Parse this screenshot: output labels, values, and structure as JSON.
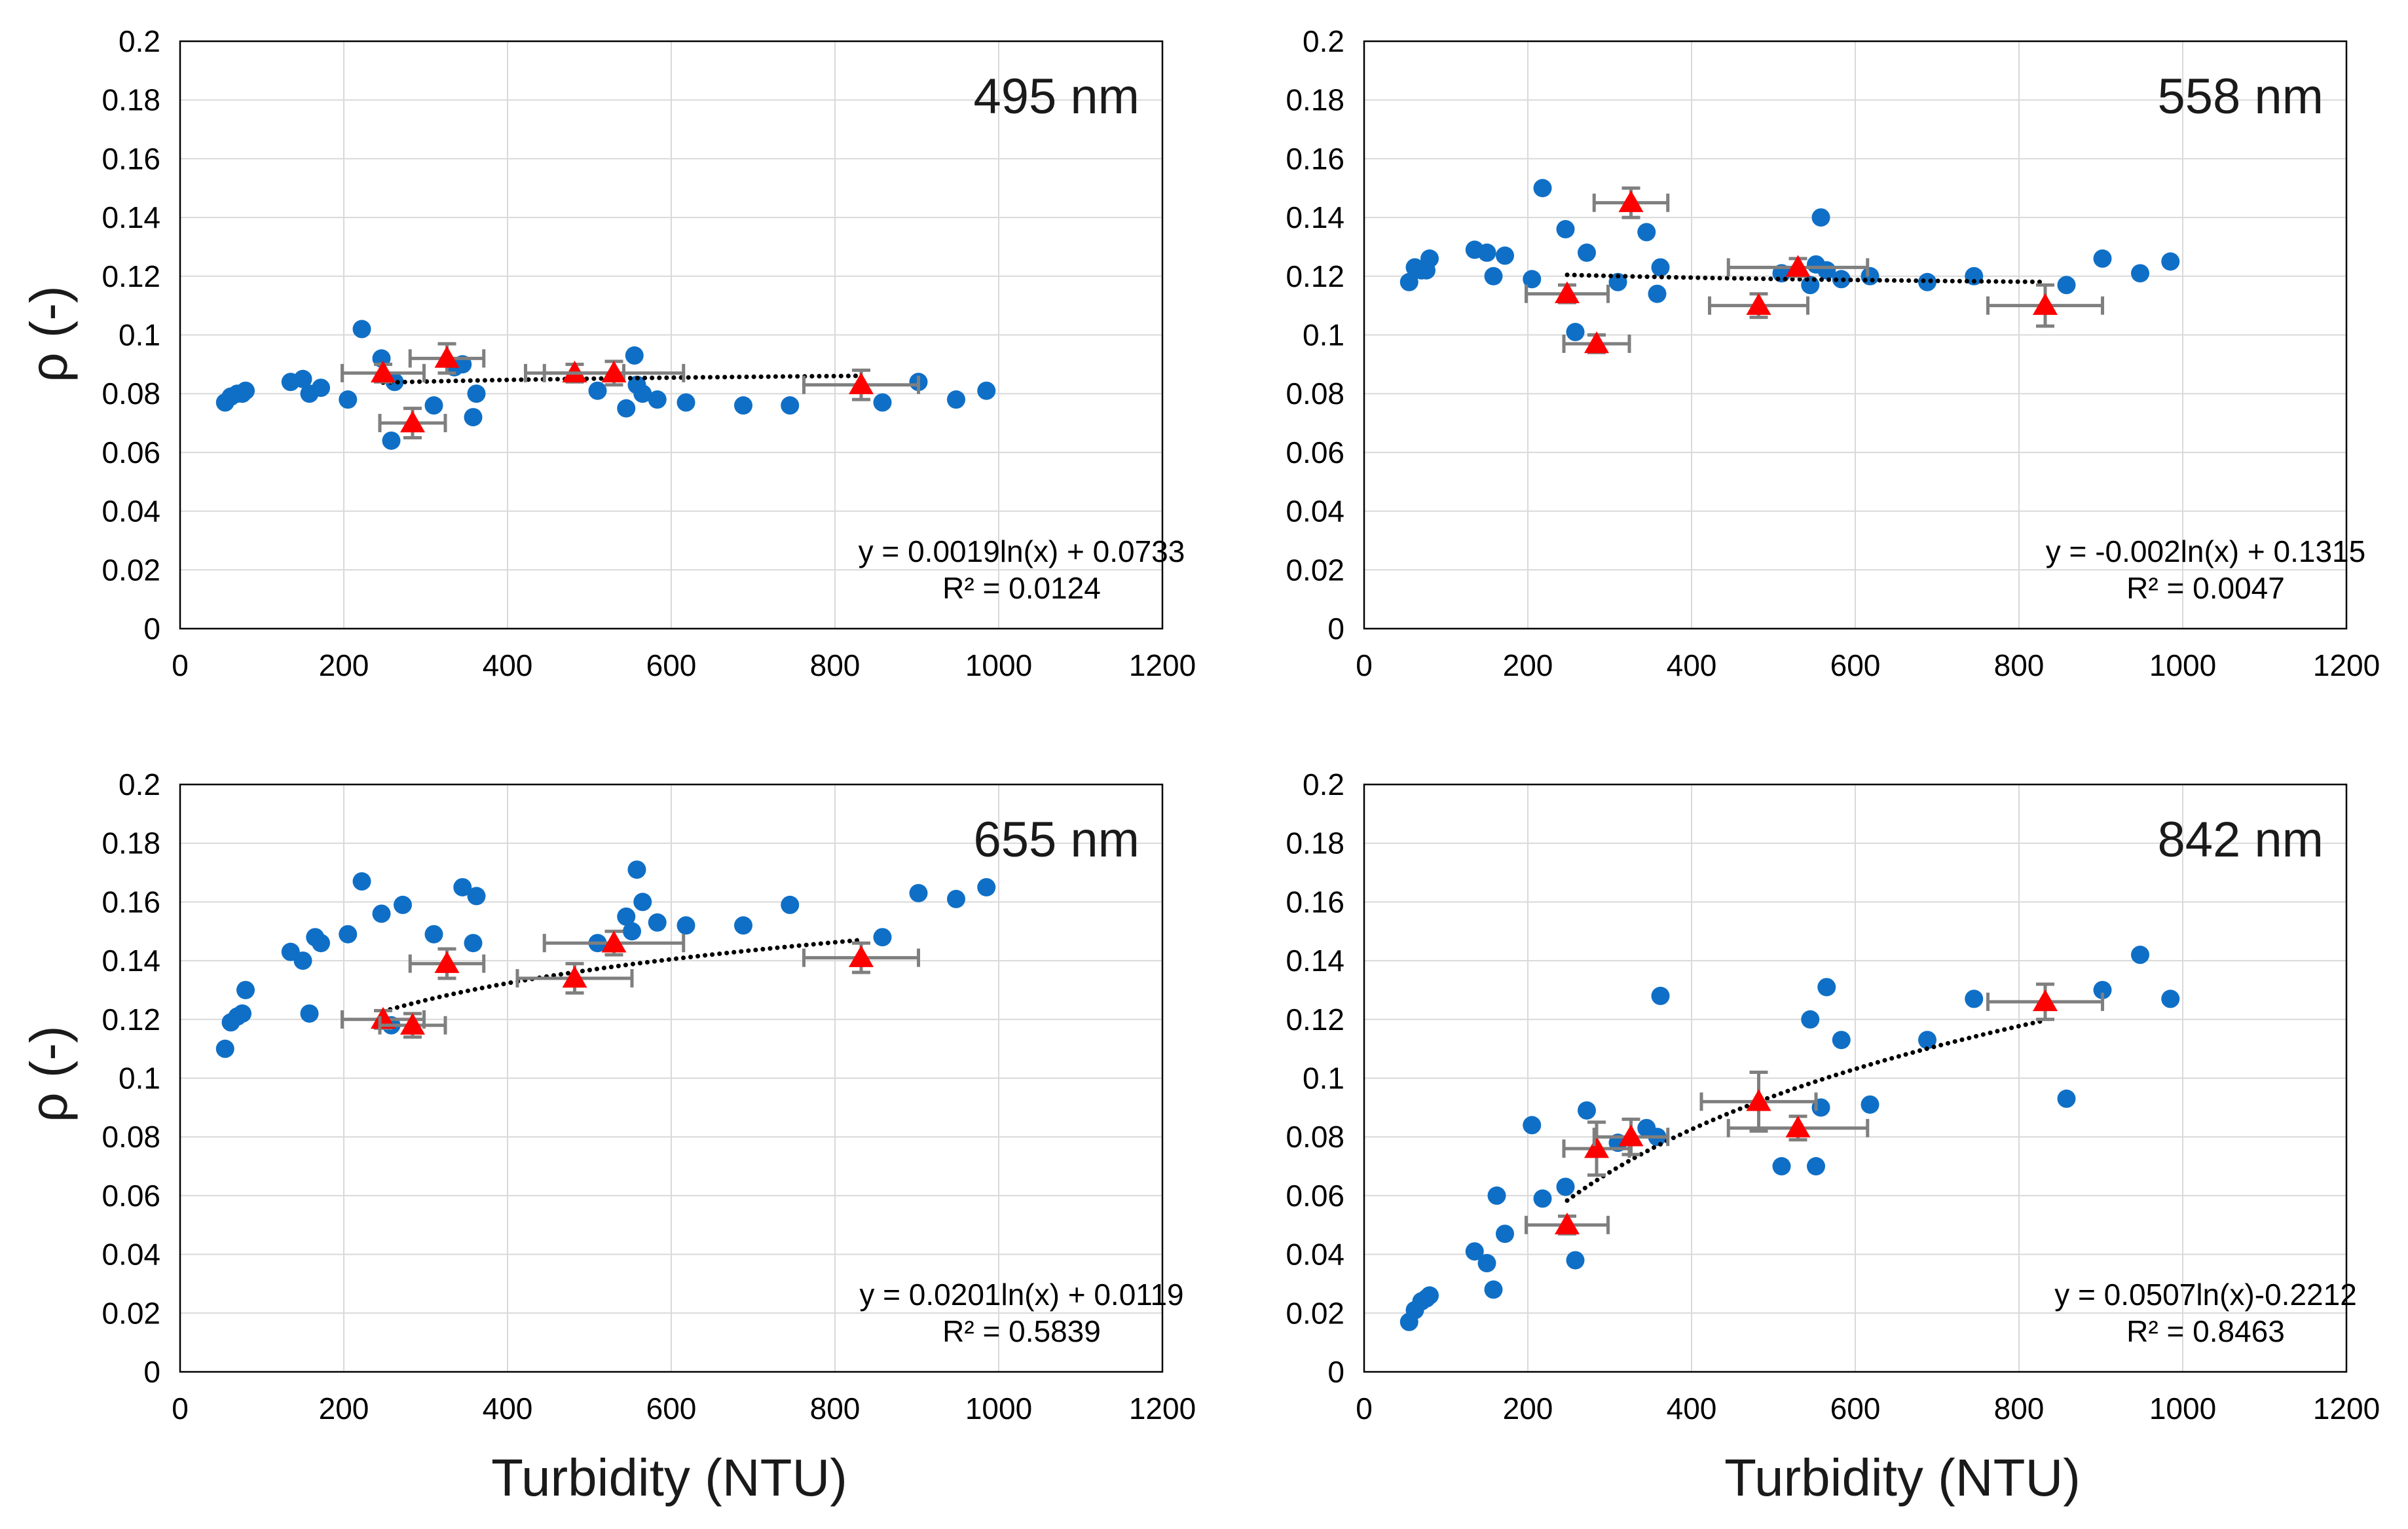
{
  "x_axis_title": "Turbidity (NTU)",
  "y_axis_title": "ρ (-)",
  "colors": {
    "measured": "#0f6fc6",
    "mean": "#ff0000",
    "error_bar": "#7f7f7f",
    "trend": "#000000",
    "grid": "#d9d9d9"
  },
  "chart_data": [
    {
      "type": "scatter",
      "title": "495 nm",
      "xlim": [
        0,
        1200
      ],
      "ylim": [
        0,
        0.2
      ],
      "xticks": [
        "0",
        "200",
        "400",
        "600",
        "800",
        "1000",
        "1200"
      ],
      "yticks": [
        "0",
        "0.02",
        "0.04",
        "0.06",
        "0.08",
        "0.1",
        "0.12",
        "0.14",
        "0.16",
        "0.18",
        "0.2"
      ],
      "equation": "y = 0.0019ln(x) + 0.0733",
      "r2": "R² = 0.0124",
      "trend": {
        "type": "log",
        "a": 0.0019,
        "b": 0.0733,
        "x_range": [
          248,
          830
        ]
      },
      "series": [
        {
          "name": "measured",
          "x": [
            55,
            62,
            70,
            76,
            80,
            135,
            150,
            158,
            172,
            205,
            222,
            246,
            258,
            262,
            310,
            335,
            345,
            358,
            362,
            510,
            545,
            555,
            558,
            565,
            583,
            618,
            688,
            745,
            858,
            902,
            948,
            985
          ],
          "y": [
            0.077,
            0.079,
            0.08,
            0.08,
            0.081,
            0.084,
            0.085,
            0.08,
            0.082,
            0.078,
            0.102,
            0.092,
            0.064,
            0.084,
            0.076,
            0.089,
            0.09,
            0.072,
            0.08,
            0.081,
            0.075,
            0.093,
            0.083,
            0.08,
            0.078,
            0.077,
            0.076,
            0.076,
            0.077,
            0.084,
            0.078,
            0.081
          ]
        },
        {
          "name": "mean",
          "x": [
            248,
            284,
            326,
            482,
            530,
            832
          ],
          "y": [
            0.087,
            0.07,
            0.092,
            0.087,
            0.087,
            0.083
          ],
          "xerr": [
            50,
            40,
            45,
            60,
            85,
            70
          ],
          "yerr": [
            0.003,
            0.005,
            0.005,
            0.003,
            0.004,
            0.005
          ]
        }
      ]
    },
    {
      "type": "scatter",
      "title": "558 nm",
      "xlim": [
        0,
        1200
      ],
      "ylim": [
        0,
        0.2
      ],
      "xticks": [
        "0",
        "200",
        "400",
        "600",
        "800",
        "1000",
        "1200"
      ],
      "yticks": [
        "0",
        "0.02",
        "0.04",
        "0.06",
        "0.08",
        "0.1",
        "0.12",
        "0.14",
        "0.16",
        "0.18",
        "0.2"
      ],
      "equation": "y = -0.002ln(x) + 0.1315",
      "r2": "R² = 0.0047",
      "trend": {
        "type": "log",
        "a": -0.002,
        "b": 0.1315,
        "x_range": [
          248,
          830
        ]
      },
      "series": [
        {
          "name": "measured",
          "x": [
            55,
            62,
            70,
            76,
            80,
            135,
            150,
            158,
            172,
            205,
            218,
            246,
            258,
            272,
            310,
            345,
            358,
            362,
            510,
            545,
            552,
            558,
            565,
            583,
            618,
            688,
            745,
            858,
            902,
            948,
            985
          ],
          "y": [
            0.118,
            0.123,
            0.122,
            0.122,
            0.126,
            0.129,
            0.128,
            0.12,
            0.127,
            0.119,
            0.15,
            0.136,
            0.101,
            0.128,
            0.118,
            0.135,
            0.114,
            0.123,
            0.121,
            0.117,
            0.124,
            0.14,
            0.122,
            0.119,
            0.12,
            0.118,
            0.12,
            0.117,
            0.126,
            0.121,
            0.125
          ]
        },
        {
          "name": "mean",
          "x": [
            248,
            284,
            326,
            482,
            530,
            832
          ],
          "y": [
            0.114,
            0.097,
            0.145,
            0.11,
            0.123,
            0.11
          ],
          "xerr": [
            50,
            40,
            45,
            60,
            85,
            70
          ],
          "yerr": [
            0.003,
            0.003,
            0.005,
            0.004,
            0.003,
            0.007
          ]
        }
      ]
    },
    {
      "type": "scatter",
      "title": "655 nm",
      "xlim": [
        0,
        1200
      ],
      "ylim": [
        0,
        0.2
      ],
      "xticks": [
        "0",
        "200",
        "400",
        "600",
        "800",
        "1000",
        "1200"
      ],
      "yticks": [
        "0",
        "0.02",
        "0.04",
        "0.06",
        "0.08",
        "0.1",
        "0.12",
        "0.14",
        "0.16",
        "0.18",
        "0.2"
      ],
      "equation": "y = 0.0201ln(x) + 0.0119",
      "r2": "R² = 0.5839",
      "trend": {
        "type": "log",
        "a": 0.0201,
        "b": 0.0119,
        "x_range": [
          248,
          830
        ]
      },
      "series": [
        {
          "name": "measured",
          "x": [
            55,
            62,
            70,
            76,
            80,
            135,
            150,
            158,
            165,
            172,
            205,
            222,
            246,
            258,
            272,
            310,
            345,
            358,
            362,
            510,
            545,
            552,
            558,
            565,
            583,
            618,
            688,
            745,
            858,
            902,
            948,
            985
          ],
          "y": [
            0.11,
            0.119,
            0.121,
            0.122,
            0.13,
            0.143,
            0.14,
            0.122,
            0.148,
            0.146,
            0.149,
            0.167,
            0.156,
            0.118,
            0.159,
            0.149,
            0.165,
            0.146,
            0.162,
            0.146,
            0.155,
            0.15,
            0.171,
            0.16,
            0.153,
            0.152,
            0.152,
            0.159,
            0.148,
            0.163,
            0.161,
            0.165
          ]
        },
        {
          "name": "mean",
          "x": [
            248,
            284,
            326,
            482,
            530,
            832
          ],
          "y": [
            0.12,
            0.118,
            0.139,
            0.134,
            0.146,
            0.141
          ],
          "xerr": [
            50,
            40,
            45,
            70,
            85,
            70
          ],
          "yerr": [
            0.003,
            0.004,
            0.005,
            0.005,
            0.004,
            0.005
          ]
        }
      ]
    },
    {
      "type": "scatter",
      "title": "842 nm",
      "xlim": [
        0,
        1200
      ],
      "ylim": [
        0,
        0.2
      ],
      "xticks": [
        "0",
        "200",
        "400",
        "600",
        "800",
        "1000",
        "1200"
      ],
      "yticks": [
        "0",
        "0.02",
        "0.04",
        "0.06",
        "0.08",
        "0.1",
        "0.12",
        "0.14",
        "0.16",
        "0.18",
        "0.2"
      ],
      "equation": "y = 0.0507ln(x)-0.2212",
      "r2": "R² = 0.8463",
      "trend": {
        "type": "log",
        "a": 0.0507,
        "b": -0.2212,
        "x_range": [
          248,
          830
        ]
      },
      "series": [
        {
          "name": "measured",
          "x": [
            55,
            62,
            70,
            76,
            80,
            135,
            150,
            158,
            162,
            172,
            205,
            218,
            246,
            258,
            272,
            310,
            345,
            358,
            362,
            510,
            545,
            552,
            558,
            565,
            583,
            618,
            688,
            745,
            858,
            902,
            948,
            985
          ],
          "y": [
            0.017,
            0.021,
            0.024,
            0.025,
            0.026,
            0.041,
            0.037,
            0.028,
            0.06,
            0.047,
            0.084,
            0.059,
            0.063,
            0.038,
            0.089,
            0.078,
            0.083,
            0.08,
            0.128,
            0.07,
            0.12,
            0.07,
            0.09,
            0.131,
            0.113,
            0.091,
            0.113,
            0.127,
            0.093,
            0.13,
            0.142,
            0.127
          ]
        },
        {
          "name": "mean",
          "x": [
            248,
            284,
            326,
            482,
            530,
            832
          ],
          "y": [
            0.05,
            0.076,
            0.08,
            0.092,
            0.083,
            0.126
          ],
          "xerr": [
            50,
            40,
            45,
            70,
            85,
            70
          ],
          "yerr": [
            0.003,
            0.009,
            0.006,
            0.01,
            0.004,
            0.006
          ]
        }
      ]
    }
  ]
}
